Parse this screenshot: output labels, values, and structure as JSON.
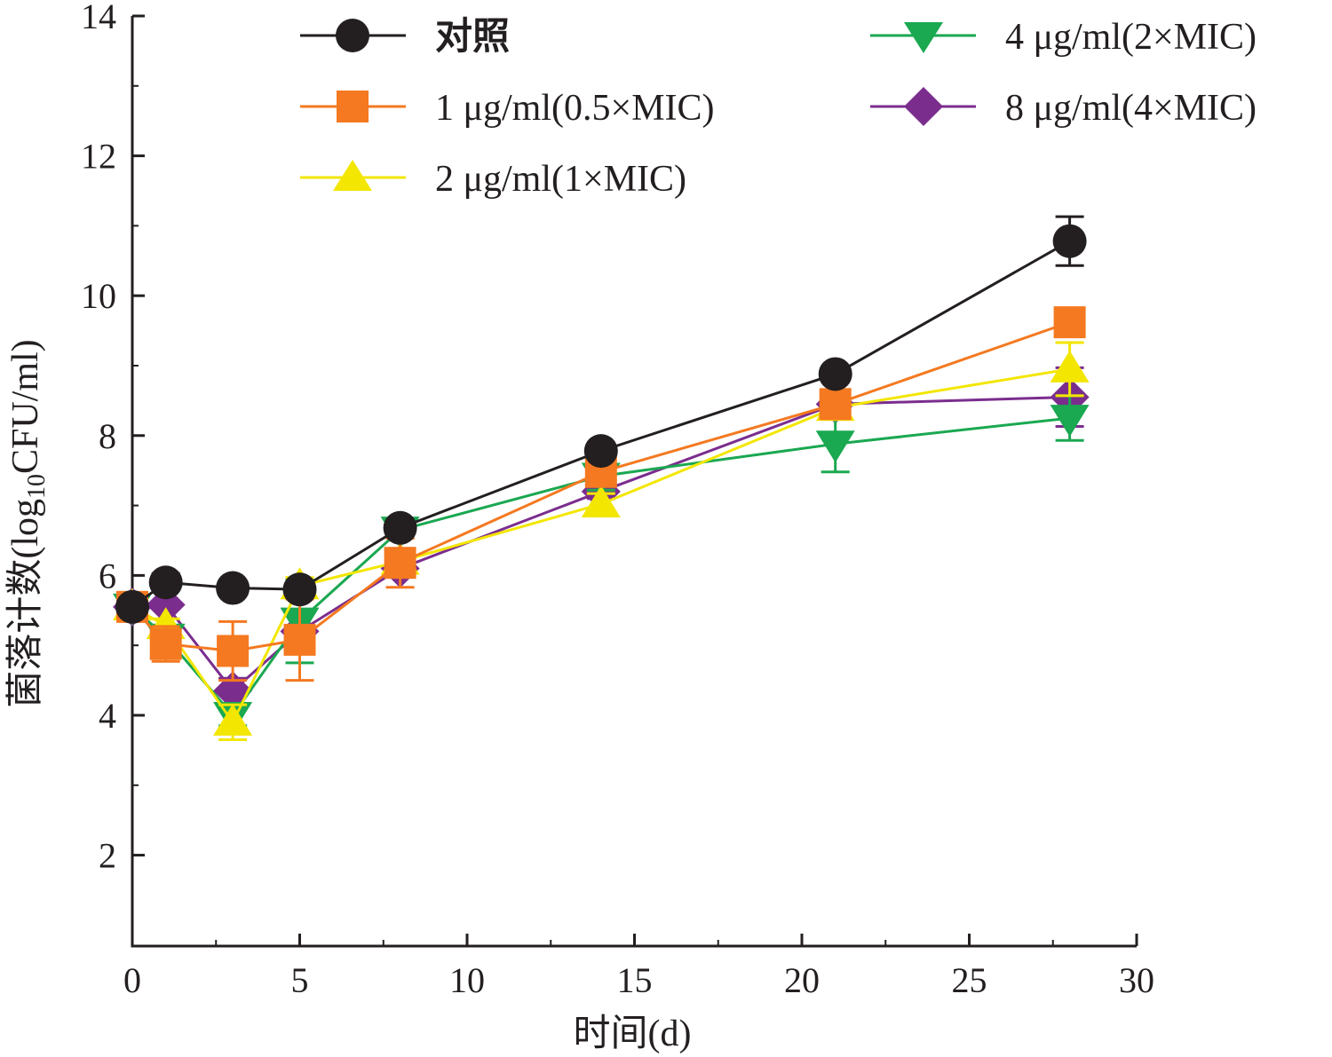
{
  "chart_data": {
    "type": "line",
    "xlabel": "时间(d)",
    "ylabel_main": "菌落计数(log",
    "ylabel_sub": "10",
    "ylabel_tail": "CFU/ml)",
    "xlim": [
      0,
      30
    ],
    "ylim": [
      0.7,
      14
    ],
    "xticks": [
      0,
      5,
      10,
      15,
      20,
      25,
      30
    ],
    "yticks": [
      2,
      4,
      6,
      8,
      10,
      12,
      14
    ],
    "grid": false,
    "legend_position": "top",
    "x": [
      0,
      1,
      3,
      5,
      8,
      14,
      21,
      28
    ],
    "series": [
      {
        "name": "对照",
        "color": "#231f20",
        "marker": "circle",
        "values": [
          5.55,
          5.9,
          5.82,
          5.8,
          6.68,
          7.78,
          8.88,
          10.78
        ],
        "errors": [
          0.08,
          0.1,
          0.06,
          0.07,
          0.1,
          0.08,
          0.06,
          0.35
        ]
      },
      {
        "name": "1 μg/ml(0.5×MIC)",
        "color": "#f47920",
        "marker": "square",
        "values": [
          5.55,
          5.02,
          4.92,
          5.08,
          6.18,
          7.48,
          8.45,
          9.62
        ],
        "errors": [
          0.1,
          0.25,
          0.42,
          0.58,
          0.35,
          0.2,
          0.08,
          0.12
        ]
      },
      {
        "name": "2 μg/ml(1×MIC)",
        "color": "#f3e600",
        "marker": "triangle-up",
        "values": [
          5.55,
          5.28,
          3.9,
          5.85,
          6.2,
          7.02,
          8.4,
          8.95
        ],
        "errors": [
          0.08,
          0.1,
          0.25,
          0.12,
          0.1,
          0.15,
          0.1,
          0.38
        ]
      },
      {
        "name": "4 μg/ml(2×MIC)",
        "color": "#1aa851",
        "marker": "triangle-down",
        "values": [
          5.55,
          5.12,
          4.0,
          5.35,
          6.65,
          7.42,
          7.88,
          8.25
        ],
        "errors": [
          0.06,
          0.12,
          0.15,
          0.6,
          0.1,
          0.2,
          0.4,
          0.32
        ]
      },
      {
        "name": "8 μg/ml(4×MIC)",
        "color": "#7b2d8e",
        "marker": "diamond",
        "values": [
          5.55,
          5.58,
          4.35,
          5.2,
          6.1,
          7.2,
          8.45,
          8.55
        ],
        "errors": [
          0.06,
          0.45,
          0.18,
          0.3,
          0.1,
          0.1,
          0.1,
          0.42
        ]
      }
    ]
  }
}
